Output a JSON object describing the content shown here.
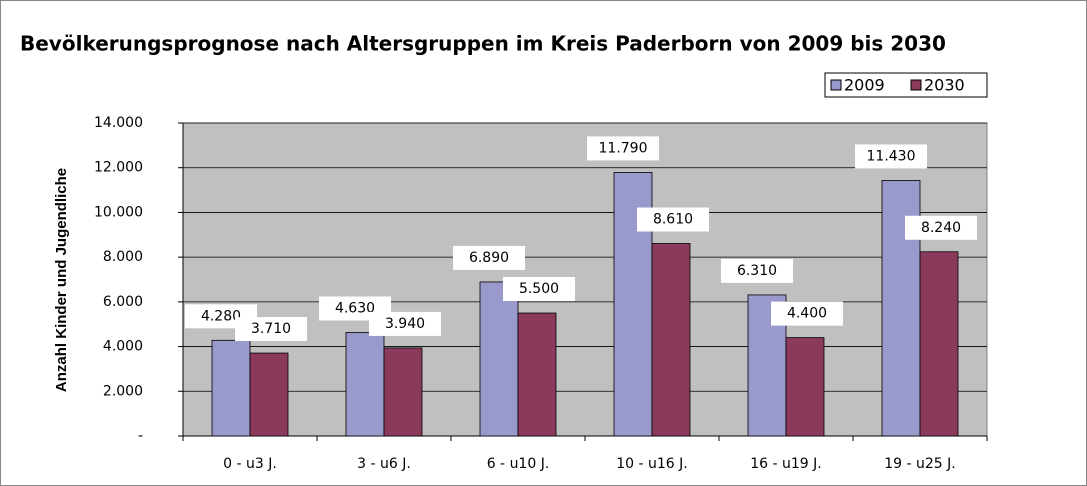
{
  "chart_data": {
    "type": "bar",
    "title": "Bevölkerungsprognose nach Altersgruppen im Kreis Paderborn von 2009 bis 2030",
    "y_label": "Anzahl Kinder und Jugendliche",
    "categories": [
      "0 - u3 J.",
      "3 - u6 J.",
      "6 - u10 J.",
      "10 - u16 J.",
      "16 - u19 J.",
      "19 - u25 J."
    ],
    "series": [
      {
        "name": "2009",
        "color": "#9999cc",
        "values": [
          4280,
          4630,
          6890,
          11790,
          6310,
          11430
        ],
        "value_labels": [
          "4.280",
          "4.630",
          "6.890",
          "11.790",
          "6.310",
          "11.430"
        ]
      },
      {
        "name": "2030",
        "color": "#8b3a5c",
        "values": [
          3710,
          3940,
          5500,
          8610,
          4400,
          8240
        ],
        "value_labels": [
          "3.710",
          "3.940",
          "5.500",
          "8.610",
          "4.400",
          "8.240"
        ]
      }
    ],
    "ylim": [
      0,
      14000
    ],
    "yticks": [
      {
        "value": 0,
        "label": "-"
      },
      {
        "value": 2000,
        "label": "2.000"
      },
      {
        "value": 4000,
        "label": "4.000"
      },
      {
        "value": 6000,
        "label": "6.000"
      },
      {
        "value": 8000,
        "label": "8.000"
      },
      {
        "value": 10000,
        "label": "10.000"
      },
      {
        "value": 12000,
        "label": "12.000"
      },
      {
        "value": 14000,
        "label": "14.000"
      }
    ],
    "grid": true,
    "legend": "top-right",
    "plot_background": "#c0c0c0"
  }
}
